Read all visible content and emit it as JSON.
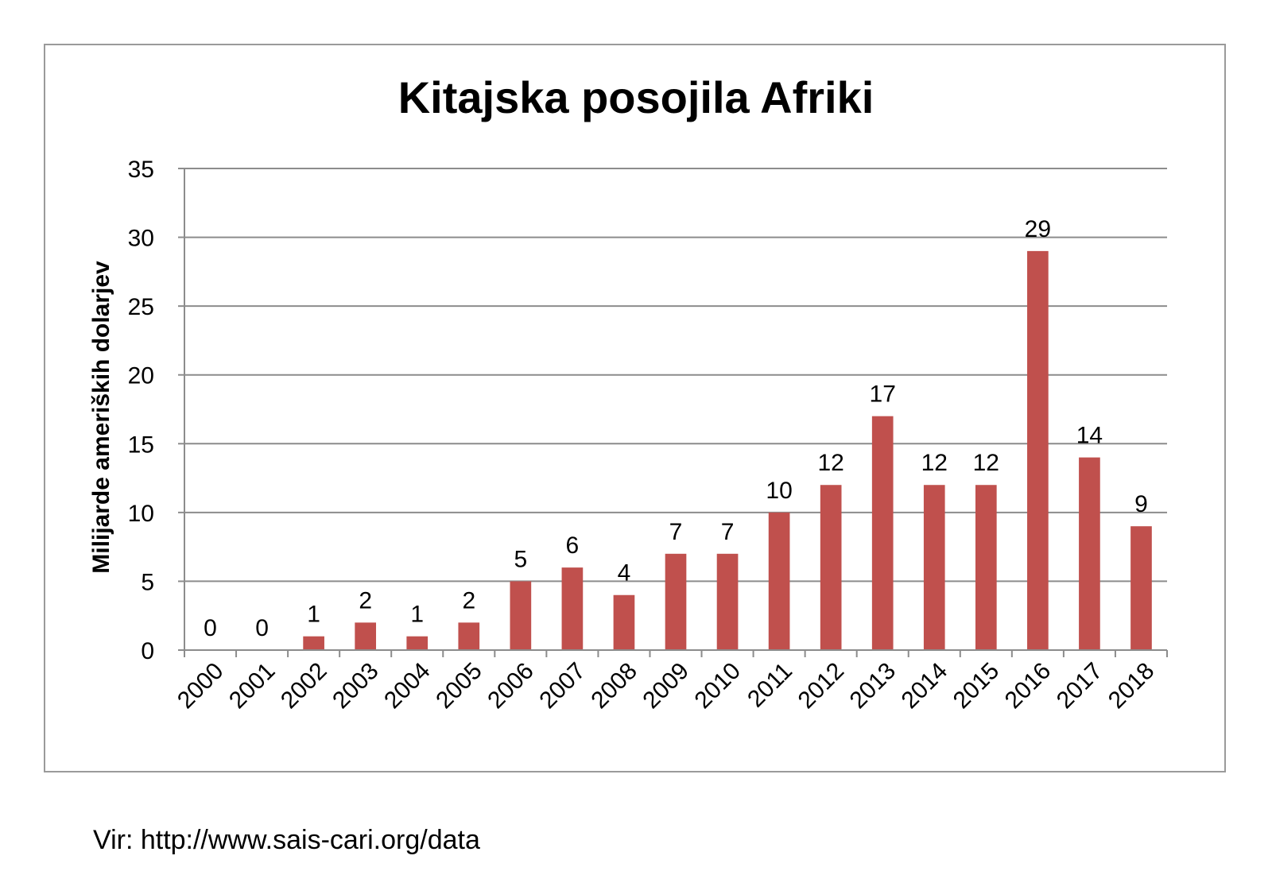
{
  "chart_data": {
    "type": "bar",
    "title": "Kitajska posojila Afriki",
    "xlabel": "",
    "ylabel": "Milijarde ameriških dolarjev",
    "categories": [
      "2000",
      "2001",
      "2002",
      "2003",
      "2004",
      "2005",
      "2006",
      "2007",
      "2008",
      "2009",
      "2010",
      "2011",
      "2012",
      "2013",
      "2014",
      "2015",
      "2016",
      "2017",
      "2018"
    ],
    "values": [
      0,
      0,
      1,
      2,
      1,
      2,
      5,
      6,
      4,
      7,
      7,
      10,
      12,
      17,
      12,
      12,
      29,
      14,
      9
    ],
    "ylim": [
      0,
      35
    ],
    "yticks": [
      0,
      5,
      10,
      15,
      20,
      25,
      30,
      35
    ],
    "grid": true,
    "legend": "none",
    "bar_color": "#c0504d"
  },
  "source": "Vir: http://www.sais-cari.org/data"
}
